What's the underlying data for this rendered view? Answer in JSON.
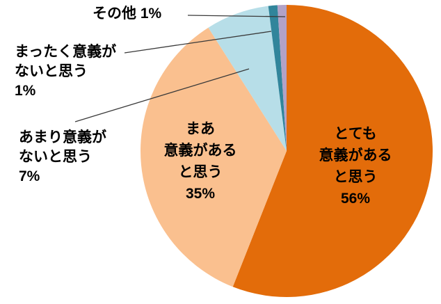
{
  "chart_data": {
    "type": "pie",
    "title": "",
    "categories": [
      "とても意義があると思う",
      "まあ意義があると思う",
      "あまり意義がないと思う",
      "まったく意義がないと思う",
      "その他"
    ],
    "values": [
      56,
      35,
      7,
      1,
      1
    ],
    "unit": "%",
    "colors": [
      "#E36C0A",
      "#FAC08F",
      "#B7DEE8",
      "#31859B",
      "#B2A2C7"
    ],
    "start_angle_deg": 0,
    "direction": "clockwise",
    "legend_position": "none",
    "background": "#FFFFFF",
    "leader_line_color": "#3A3A3A",
    "display_labels": {
      "totemo": "とても\n意義がある\nと思う\n56%",
      "maa": "まあ\n意義がある\nと思う\n35%",
      "amari": "あまり意義が\nないと思う\n7%",
      "mattaku": "まったく意義が\nないと思う\n1%",
      "sonota": "その他 1%"
    }
  }
}
